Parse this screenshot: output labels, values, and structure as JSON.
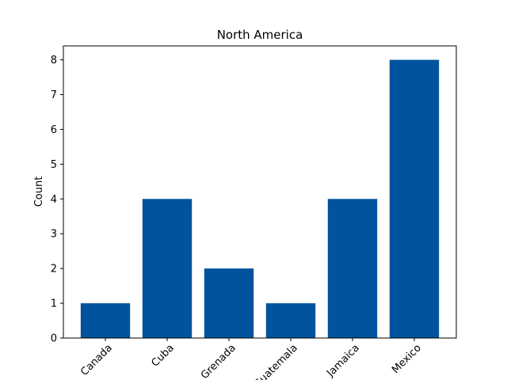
{
  "chart_data": {
    "type": "bar",
    "title": "North America",
    "xlabel": "",
    "ylabel": "Count",
    "categories": [
      "Canada",
      "Cuba",
      "Grenada",
      "Guatemala",
      "Jamaica",
      "Mexico"
    ],
    "values": [
      1,
      4,
      2,
      1,
      4,
      8
    ],
    "ylim": [
      0,
      8.4
    ],
    "yticks": [
      0,
      1,
      2,
      3,
      4,
      5,
      6,
      7,
      8
    ],
    "bar_color": "#00539c",
    "grid": false,
    "legend": "none",
    "xtick_rotation": 45
  }
}
